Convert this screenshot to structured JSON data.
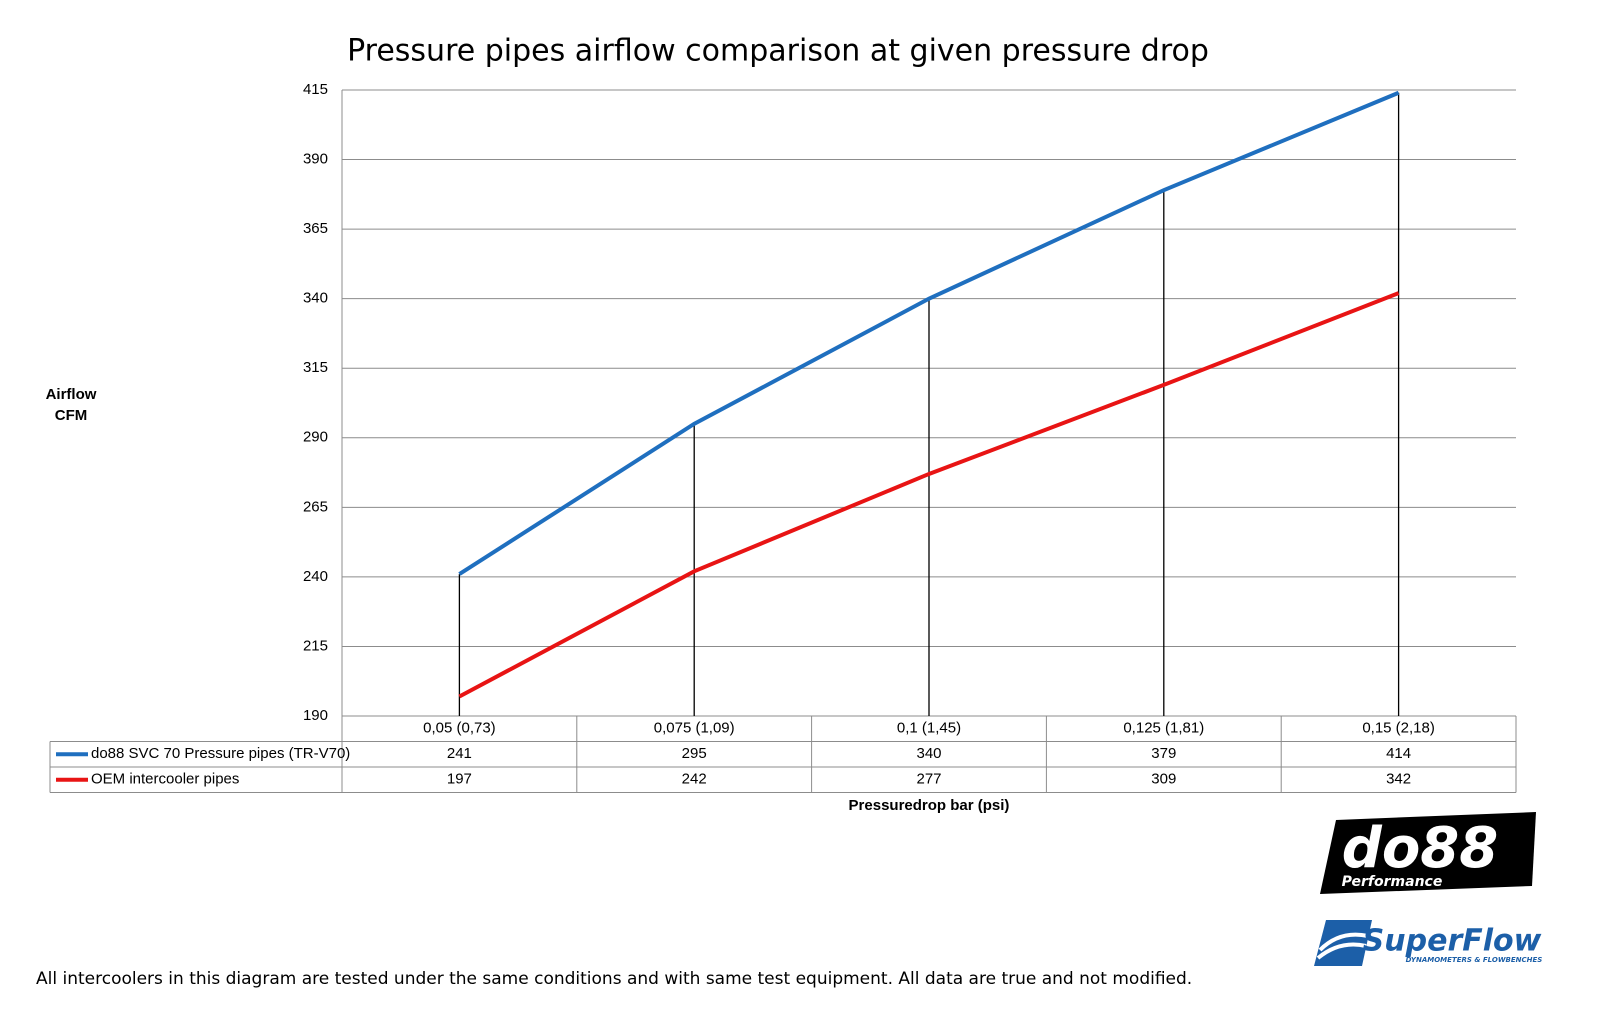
{
  "chart_data": {
    "type": "line",
    "title": "Pressure pipes airflow comparison at given pressure drop",
    "y_label": "Airflow CFM",
    "x_label": "Pressuredrop bar (psi)",
    "categories": [
      "0,05 (0,73)",
      "0,075 (1,09)",
      "0,1 (1,45)",
      "0,125 (1,81)",
      "0,15 (2,18)"
    ],
    "series": [
      {
        "name": "do88 SVC 70 Pressure pipes (TR-V70)",
        "color": "#1f6fbf",
        "values": [
          241,
          295,
          340,
          379,
          414
        ]
      },
      {
        "name": "OEM intercooler pipes",
        "color": "#e81414",
        "values": [
          197,
          242,
          277,
          309,
          342
        ]
      }
    ],
    "ylim": [
      190,
      415
    ],
    "yticks": [
      190,
      215,
      240,
      265,
      290,
      315,
      340,
      365,
      390,
      415
    ],
    "grid": true,
    "footnote": "All intercoolers in this diagram are tested under the same conditions and with same test equipment. All data are true and not modified.",
    "logos": {
      "brand": "do88",
      "brand_sub": "Performance",
      "partner": "SuperFlow",
      "partner_sub": "DYNAMOMETERS & FLOWBENCHES"
    }
  }
}
